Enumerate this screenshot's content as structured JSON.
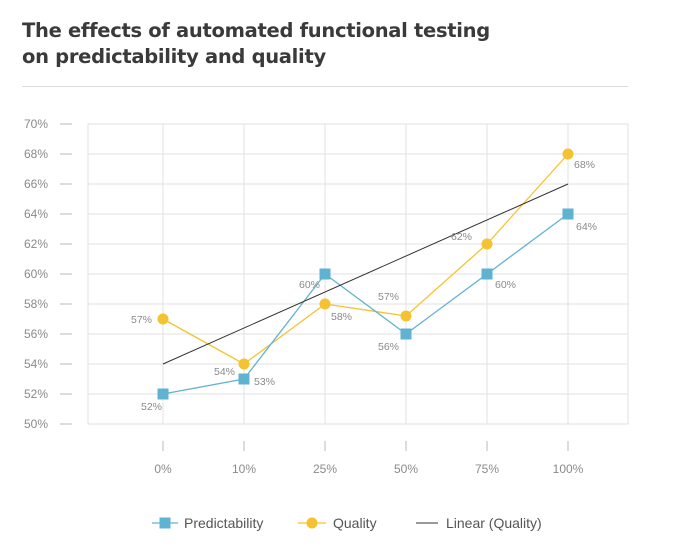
{
  "title_line1": "The effects of automated functional testing",
  "title_line2": "on predictability and quality",
  "chart_data": {
    "type": "line",
    "title": "The effects of automated functional testing on predictability and quality",
    "categories": [
      "0%",
      "10%",
      "25%",
      "50%",
      "75%",
      "100%"
    ],
    "ylim": [
      50,
      70
    ],
    "yticks": [
      50,
      52,
      54,
      56,
      58,
      60,
      62,
      64,
      66,
      68,
      70
    ],
    "ytick_suffix": "%",
    "grid": true,
    "legend_position": "bottom-center",
    "series": [
      {
        "name": "Predictability",
        "marker": "square",
        "color": "#5fb3d1",
        "values": [
          52,
          53,
          60,
          56,
          60,
          64
        ],
        "labels": [
          "52%",
          "53%",
          "60%",
          "56%",
          "60%",
          "64%"
        ]
      },
      {
        "name": "Quality",
        "marker": "circle",
        "color": "#f5c230",
        "values": [
          57,
          54,
          58,
          57.2,
          62,
          68
        ],
        "labels": [
          "57%",
          "54%",
          "58%",
          "57%",
          "62%",
          "68%"
        ]
      },
      {
        "name": "Linear (Quality)",
        "marker": "none",
        "color": "#333333",
        "values": [
          54,
          56.4,
          58.8,
          61.2,
          63.6,
          66
        ]
      }
    ]
  }
}
